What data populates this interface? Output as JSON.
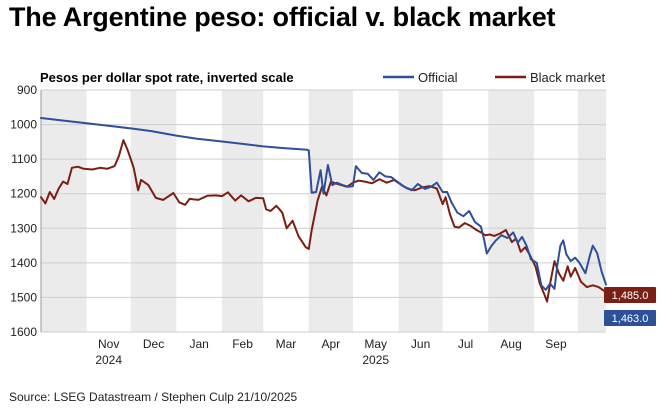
{
  "title": "The Argentine peso: official v. black market",
  "source": "Source: LSEG Datastream / Stephen Culp 21/10/2025",
  "chart_data": {
    "type": "line",
    "subtitle": "Pesos per dollar spot rate, inverted scale",
    "y_inverted": true,
    "ylim": [
      900,
      1600
    ],
    "y_ticks": [
      "900",
      "1000",
      "1100",
      "1200",
      "1300",
      "1400",
      "1500",
      "1600"
    ],
    "x_start": "2024-10-01",
    "x_end": "2025-10-20",
    "x_ticks": [
      {
        "label": "Nov",
        "date": "2024-11-01"
      },
      {
        "label": "Dec",
        "date": "2024-12-01"
      },
      {
        "label": "Jan",
        "date": "2025-01-01"
      },
      {
        "label": "Feb",
        "date": "2025-02-01"
      },
      {
        "label": "Mar",
        "date": "2025-03-01"
      },
      {
        "label": "Apr",
        "date": "2025-04-01"
      },
      {
        "label": "May",
        "date": "2025-05-01"
      },
      {
        "label": "Jun",
        "date": "2025-06-01"
      },
      {
        "label": "Jul",
        "date": "2025-07-01"
      },
      {
        "label": "Aug",
        "date": "2025-08-01"
      },
      {
        "label": "Sep",
        "date": "2025-09-01"
      }
    ],
    "year_labels": [
      {
        "label": "2024",
        "date": "2024-11-01"
      },
      {
        "label": "2025",
        "date": "2025-05-01"
      }
    ],
    "shaded_bands": [
      [
        "2024-10-01",
        "2024-11-01"
      ],
      [
        "2024-12-01",
        "2025-01-01"
      ],
      [
        "2025-02-01",
        "2025-03-01"
      ],
      [
        "2025-04-01",
        "2025-05-01"
      ],
      [
        "2025-06-01",
        "2025-07-01"
      ],
      [
        "2025-08-01",
        "2025-09-01"
      ],
      [
        "2025-10-01",
        "2025-10-20"
      ]
    ],
    "grid": true,
    "legend_position": "top-right",
    "series": [
      {
        "name": "Official",
        "color": "#2e4f99",
        "end_label": "1,463.0",
        "points": [
          [
            "2024-10-01",
            981
          ],
          [
            "2024-10-15",
            988
          ],
          [
            "2024-11-01",
            996
          ],
          [
            "2024-11-15",
            1003
          ],
          [
            "2024-12-01",
            1011
          ],
          [
            "2024-12-15",
            1019
          ],
          [
            "2025-01-01",
            1032
          ],
          [
            "2025-01-15",
            1041
          ],
          [
            "2025-02-01",
            1049
          ],
          [
            "2025-02-15",
            1056
          ],
          [
            "2025-03-01",
            1063
          ],
          [
            "2025-03-15",
            1068
          ],
          [
            "2025-03-31",
            1073
          ],
          [
            "2025-04-01",
            1075
          ],
          [
            "2025-04-03",
            1197
          ],
          [
            "2025-04-06",
            1195
          ],
          [
            "2025-04-09",
            1132
          ],
          [
            "2025-04-11",
            1200
          ],
          [
            "2025-04-14",
            1117
          ],
          [
            "2025-04-17",
            1175
          ],
          [
            "2025-04-20",
            1168
          ],
          [
            "2025-04-24",
            1175
          ],
          [
            "2025-04-28",
            1180
          ],
          [
            "2025-05-01",
            1178
          ],
          [
            "2025-05-03",
            1120
          ],
          [
            "2025-05-07",
            1140
          ],
          [
            "2025-05-11",
            1142
          ],
          [
            "2025-05-15",
            1160
          ],
          [
            "2025-05-19",
            1138
          ],
          [
            "2025-05-23",
            1150
          ],
          [
            "2025-05-27",
            1152
          ],
          [
            "2025-05-31",
            1165
          ],
          [
            "2025-06-05",
            1180
          ],
          [
            "2025-06-10",
            1190
          ],
          [
            "2025-06-14",
            1172
          ],
          [
            "2025-06-19",
            1186
          ],
          [
            "2025-06-23",
            1180
          ],
          [
            "2025-06-27",
            1168
          ],
          [
            "2025-07-01",
            1195
          ],
          [
            "2025-07-04",
            1195
          ],
          [
            "2025-07-07",
            1225
          ],
          [
            "2025-07-11",
            1255
          ],
          [
            "2025-07-15",
            1265
          ],
          [
            "2025-07-19",
            1250
          ],
          [
            "2025-07-23",
            1282
          ],
          [
            "2025-07-27",
            1295
          ],
          [
            "2025-07-29",
            1330
          ],
          [
            "2025-07-31",
            1373
          ],
          [
            "2025-08-03",
            1352
          ],
          [
            "2025-08-06",
            1336
          ],
          [
            "2025-08-10",
            1320
          ],
          [
            "2025-08-14",
            1328
          ],
          [
            "2025-08-18",
            1312
          ],
          [
            "2025-08-21",
            1342
          ],
          [
            "2025-08-24",
            1325
          ],
          [
            "2025-08-27",
            1350
          ],
          [
            "2025-08-30",
            1390
          ],
          [
            "2025-09-03",
            1400
          ],
          [
            "2025-09-06",
            1465
          ],
          [
            "2025-09-09",
            1478
          ],
          [
            "2025-09-12",
            1460
          ],
          [
            "2025-09-15",
            1475
          ],
          [
            "2025-09-17",
            1405
          ],
          [
            "2025-09-19",
            1350
          ],
          [
            "2025-09-21",
            1335
          ],
          [
            "2025-09-23",
            1375
          ],
          [
            "2025-09-26",
            1395
          ],
          [
            "2025-09-29",
            1385
          ],
          [
            "2025-10-02",
            1400
          ],
          [
            "2025-10-06",
            1430
          ],
          [
            "2025-10-09",
            1380
          ],
          [
            "2025-10-11",
            1350
          ],
          [
            "2025-10-14",
            1372
          ],
          [
            "2025-10-17",
            1425
          ],
          [
            "2025-10-20",
            1463
          ]
        ]
      },
      {
        "name": "Black market",
        "color": "#7a1f14",
        "end_label": "1,485.0",
        "points": [
          [
            "2024-10-01",
            1210
          ],
          [
            "2024-10-04",
            1228
          ],
          [
            "2024-10-07",
            1195
          ],
          [
            "2024-10-10",
            1215
          ],
          [
            "2024-10-13",
            1185
          ],
          [
            "2024-10-16",
            1165
          ],
          [
            "2024-10-19",
            1172
          ],
          [
            "2024-10-22",
            1125
          ],
          [
            "2024-10-26",
            1122
          ],
          [
            "2024-10-30",
            1128
          ],
          [
            "2024-11-05",
            1130
          ],
          [
            "2024-11-10",
            1125
          ],
          [
            "2024-11-15",
            1128
          ],
          [
            "2024-11-20",
            1120
          ],
          [
            "2024-11-23",
            1090
          ],
          [
            "2024-11-26",
            1045
          ],
          [
            "2024-11-29",
            1075
          ],
          [
            "2024-12-03",
            1125
          ],
          [
            "2024-12-06",
            1190
          ],
          [
            "2024-12-08",
            1160
          ],
          [
            "2024-12-13",
            1175
          ],
          [
            "2024-12-18",
            1212
          ],
          [
            "2024-12-23",
            1218
          ],
          [
            "2024-12-30",
            1198
          ],
          [
            "2025-01-03",
            1225
          ],
          [
            "2025-01-07",
            1232
          ],
          [
            "2025-01-10",
            1215
          ],
          [
            "2025-01-16",
            1218
          ],
          [
            "2025-01-22",
            1206
          ],
          [
            "2025-01-28",
            1205
          ],
          [
            "2025-02-01",
            1207
          ],
          [
            "2025-02-05",
            1196
          ],
          [
            "2025-02-10",
            1220
          ],
          [
            "2025-02-14",
            1205
          ],
          [
            "2025-02-19",
            1222
          ],
          [
            "2025-02-24",
            1212
          ],
          [
            "2025-03-01",
            1213
          ],
          [
            "2025-03-03",
            1245
          ],
          [
            "2025-03-06",
            1250
          ],
          [
            "2025-03-10",
            1235
          ],
          [
            "2025-03-14",
            1255
          ],
          [
            "2025-03-17",
            1300
          ],
          [
            "2025-03-21",
            1278
          ],
          [
            "2025-03-25",
            1323
          ],
          [
            "2025-03-30",
            1355
          ],
          [
            "2025-04-01",
            1360
          ],
          [
            "2025-04-03",
            1305
          ],
          [
            "2025-04-07",
            1220
          ],
          [
            "2025-04-10",
            1180
          ],
          [
            "2025-04-13",
            1205
          ],
          [
            "2025-04-16",
            1165
          ],
          [
            "2025-04-19",
            1170
          ],
          [
            "2025-04-23",
            1175
          ],
          [
            "2025-04-27",
            1180
          ],
          [
            "2025-05-01",
            1168
          ],
          [
            "2025-05-05",
            1162
          ],
          [
            "2025-05-09",
            1165
          ],
          [
            "2025-05-14",
            1170
          ],
          [
            "2025-05-19",
            1158
          ],
          [
            "2025-05-24",
            1168
          ],
          [
            "2025-05-29",
            1160
          ],
          [
            "2025-06-03",
            1175
          ],
          [
            "2025-06-07",
            1185
          ],
          [
            "2025-06-12",
            1190
          ],
          [
            "2025-06-17",
            1182
          ],
          [
            "2025-06-22",
            1178
          ],
          [
            "2025-06-27",
            1185
          ],
          [
            "2025-07-01",
            1230
          ],
          [
            "2025-07-03",
            1210
          ],
          [
            "2025-07-06",
            1260
          ],
          [
            "2025-07-09",
            1295
          ],
          [
            "2025-07-12",
            1298
          ],
          [
            "2025-07-16",
            1285
          ],
          [
            "2025-07-20",
            1293
          ],
          [
            "2025-07-24",
            1305
          ],
          [
            "2025-07-27",
            1312
          ],
          [
            "2025-07-30",
            1320
          ],
          [
            "2025-08-02",
            1318
          ],
          [
            "2025-08-05",
            1322
          ],
          [
            "2025-08-09",
            1315
          ],
          [
            "2025-08-13",
            1305
          ],
          [
            "2025-08-17",
            1340
          ],
          [
            "2025-08-20",
            1330
          ],
          [
            "2025-08-23",
            1368
          ],
          [
            "2025-08-26",
            1355
          ],
          [
            "2025-08-29",
            1375
          ],
          [
            "2025-09-02",
            1410
          ],
          [
            "2025-09-05",
            1460
          ],
          [
            "2025-09-08",
            1490
          ],
          [
            "2025-09-10",
            1512
          ],
          [
            "2025-09-12",
            1460
          ],
          [
            "2025-09-15",
            1395
          ],
          [
            "2025-09-18",
            1430
          ],
          [
            "2025-09-21",
            1452
          ],
          [
            "2025-09-24",
            1410
          ],
          [
            "2025-09-26",
            1440
          ],
          [
            "2025-09-29",
            1415
          ],
          [
            "2025-10-03",
            1455
          ],
          [
            "2025-10-07",
            1470
          ],
          [
            "2025-10-11",
            1465
          ],
          [
            "2025-10-15",
            1470
          ],
          [
            "2025-10-20",
            1485
          ]
        ]
      }
    ]
  }
}
